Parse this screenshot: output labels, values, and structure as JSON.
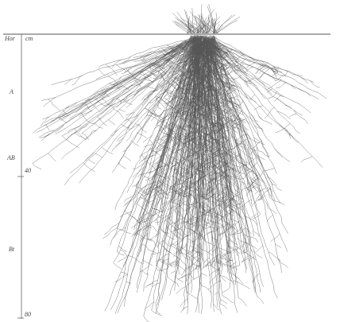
{
  "figure": {
    "header": {
      "horizon": "Hor",
      "depth_unit": "cm"
    },
    "horizons": [
      "A",
      "AB",
      "Bt"
    ],
    "depth_labels": [
      40,
      80
    ]
  }
}
